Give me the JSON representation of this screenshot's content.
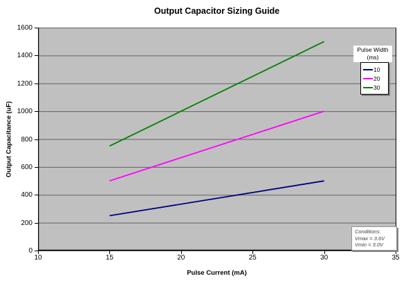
{
  "chart_data": {
    "type": "line",
    "title": "Output Capacitor Sizing Guide",
    "xlabel": "Pulse Current (mA)",
    "ylabel": "Output Capacitance (uF)",
    "xlim": [
      10,
      35
    ],
    "ylim": [
      0,
      1600
    ],
    "x_ticks": [
      10,
      15,
      20,
      25,
      30,
      35
    ],
    "y_ticks": [
      0,
      200,
      400,
      600,
      800,
      1000,
      1200,
      1400,
      1600
    ],
    "grid": "horizontal-major",
    "plot_bg_color": "#c0c0c0",
    "gridline_color": "#606060",
    "axis_color": "#000000",
    "legend_title": [
      "Pulse Width",
      "(ms)"
    ],
    "legend_position": "inside-top-right",
    "series": [
      {
        "name": "10",
        "color": "#000080",
        "x": [
          15,
          30
        ],
        "y": [
          250,
          500
        ]
      },
      {
        "name": "20",
        "color": "#ff00ff",
        "x": [
          15,
          30
        ],
        "y": [
          500,
          1000
        ]
      },
      {
        "name": "30",
        "color": "#008000",
        "x": [
          15,
          30
        ],
        "y": [
          750,
          1500
        ]
      }
    ]
  },
  "annotations": {
    "conditions": [
      "Conditions:",
      "Vmax = 3.6V",
      "Vmin = 3.0V"
    ]
  }
}
